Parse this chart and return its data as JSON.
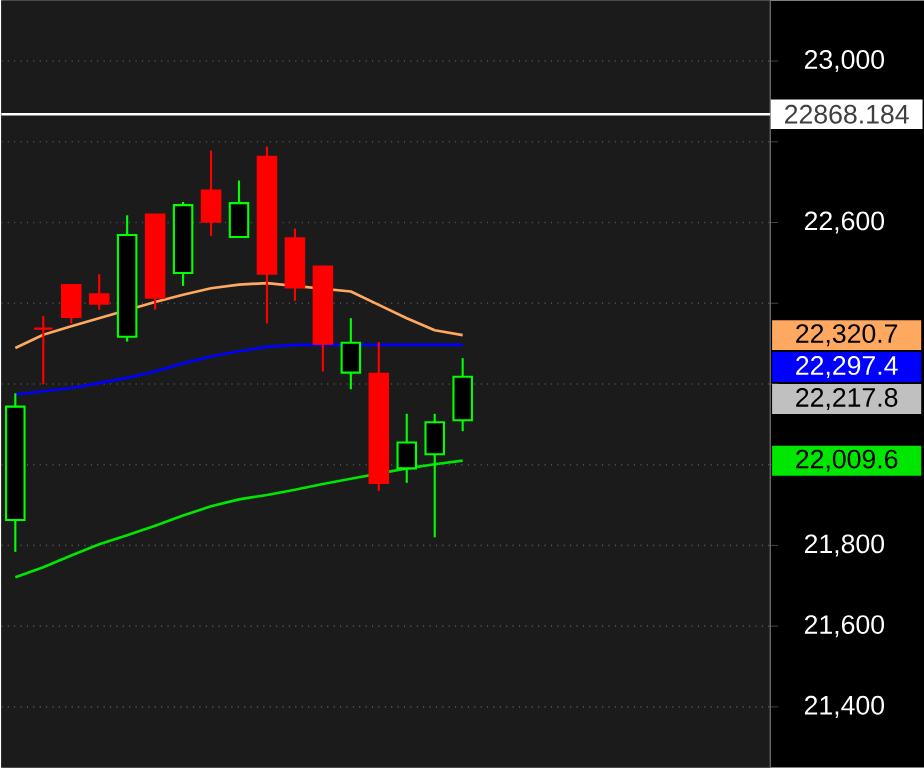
{
  "chart_data": {
    "type": "candlestick",
    "categories": [
      null,
      null,
      null,
      null,
      null,
      null,
      null,
      null,
      null,
      null,
      null,
      null,
      null,
      null,
      null,
      null,
      null
    ],
    "series": [
      {
        "ohlc": [
          [
            21863,
            22177,
            21784,
            22144
          ],
          [
            22337,
            22368,
            22199,
            22337
          ],
          [
            22445,
            22445,
            22350,
            22366
          ],
          [
            22422,
            22472,
            22384,
            22399
          ],
          [
            22317,
            22618,
            22305,
            22569
          ],
          [
            22620,
            22620,
            22384,
            22414
          ],
          [
            22475,
            22651,
            22443,
            22643
          ],
          [
            22679,
            22778,
            22567,
            22602
          ],
          [
            22564,
            22704,
            22564,
            22648
          ],
          [
            22763,
            22788,
            22350,
            22473
          ],
          [
            22561,
            22585,
            22406,
            22439
          ],
          [
            22491,
            22491,
            22231,
            22300
          ],
          [
            22228,
            22363,
            22187,
            22302
          ],
          [
            22225,
            22304,
            21935,
            21955
          ],
          [
            21991,
            22126,
            21955,
            22055
          ],
          [
            22026,
            22126,
            21820,
            22105
          ],
          [
            22110,
            22264,
            22083,
            22218
          ]
        ],
        "colors": [
          "#00ff00",
          "#ff0000",
          "#ff0000",
          "#ff0000",
          "#00ff00",
          "#ff0000",
          "#00ff00",
          "#ff0000",
          "#00ff00",
          "#ff0000",
          "#ff0000",
          "#ff0000",
          "#00ff00",
          "#ff0000",
          "#00ff00",
          "#00ff00",
          "#00ff00"
        ]
      },
      {
        "type": "line",
        "color": "#ffa860",
        "values": [
          22289,
          22322,
          22343,
          22363,
          null,
          22403,
          22421,
          22437,
          22446,
          22450,
          null,
          null,
          22429,
          22396,
          22363,
          22333,
          22321
        ]
      },
      {
        "type": "line",
        "color": "#0000ff",
        "values": [
          22174,
          22182,
          22190,
          22202,
          22215,
          22231,
          22251,
          22268,
          22281,
          22292,
          22297,
          22297,
          null,
          22297,
          22297,
          22297,
          22297
        ]
      },
      {
        "type": "line",
        "color": "#00e600",
        "values": [
          21721,
          21746,
          21775,
          21803,
          21825,
          21849,
          21874,
          21897,
          21914,
          21925,
          21938,
          21952,
          21965,
          null,
          21991,
          22001,
          22010
        ]
      }
    ],
    "ylim": [
      21250,
      23150
    ],
    "yticks": [
      {
        "value": 21400,
        "label": "21,400"
      },
      {
        "value": 21600,
        "label": "21,600"
      },
      {
        "value": 21800,
        "label": "21,800"
      },
      {
        "value": 22000,
        "label": null
      },
      {
        "value": 22200,
        "label": null
      },
      {
        "value": 22400,
        "label": null
      },
      {
        "value": 22600,
        "label": "22,600"
      },
      {
        "value": 22800,
        "label": null
      },
      {
        "value": 23000,
        "label": "23,000"
      }
    ],
    "ref_lines": [
      {
        "axis": "y",
        "value": 22868.184,
        "label": "22868.184",
        "color": "#ffffff"
      }
    ],
    "annotations": [
      "22,320.7",
      "22,297.4",
      "22,217.8",
      "22,009.6"
    ],
    "grid": "y",
    "tick_labels": "y"
  }
}
